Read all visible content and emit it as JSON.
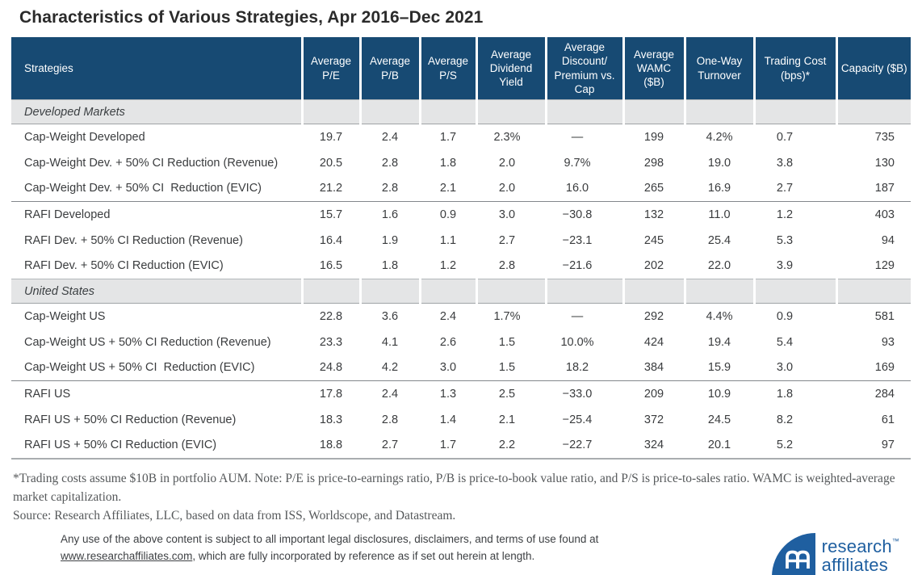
{
  "title": "Characteristics of Various Strategies, Apr 2016–Dec 2021",
  "table": {
    "columns": [
      "Strategies",
      "Average P/E",
      "Average P/B",
      "Average P/S",
      "Average Dividend Yield",
      "Average Discount/ Premium vs. Cap",
      "Average WAMC ($B)",
      "One-Way Turnover",
      "Trading Cost (bps)*",
      "Capacity ($B)"
    ],
    "sections": [
      {
        "label": "Developed Markets",
        "rows": [
          {
            "name": "Cap-Weight Developed",
            "divider": false,
            "values": [
              "19.7",
              "2.4",
              "1.7",
              "2.3%",
              "—",
              "199",
              "4.2%",
              "0.7",
              "735"
            ]
          },
          {
            "name": "Cap-Weight Dev. + 50% CI Reduction (Revenue)",
            "divider": false,
            "values": [
              "20.5",
              "2.8",
              "1.8",
              "2.0",
              "9.7%",
              "298",
              "19.0",
              "3.8",
              "130"
            ]
          },
          {
            "name": "Cap-Weight Dev. + 50% CI  Reduction (EVIC)",
            "divider": false,
            "values": [
              "21.2",
              "2.8",
              "2.1",
              "2.0",
              "16.0",
              "265",
              "16.9",
              "2.7",
              "187"
            ]
          },
          {
            "name": "RAFI Developed",
            "divider": true,
            "values": [
              "15.7",
              "1.6",
              "0.9",
              "3.0",
              "−30.8",
              "132",
              "11.0",
              "1.2",
              "403"
            ]
          },
          {
            "name": "RAFI Dev. + 50% CI Reduction (Revenue)",
            "divider": false,
            "values": [
              "16.4",
              "1.9",
              "1.1",
              "2.7",
              "−23.1",
              "245",
              "25.4",
              "5.3",
              "94"
            ]
          },
          {
            "name": "RAFI Dev. + 50% CI Reduction (EVIC)",
            "divider": false,
            "values": [
              "16.5",
              "1.8",
              "1.2",
              "2.8",
              "−21.6",
              "202",
              "22.0",
              "3.9",
              "129"
            ]
          }
        ]
      },
      {
        "label": "United States",
        "rows": [
          {
            "name": "Cap-Weight US",
            "divider": false,
            "values": [
              "22.8",
              "3.6",
              "2.4",
              "1.7%",
              "—",
              "292",
              "4.4%",
              "0.9",
              "581"
            ]
          },
          {
            "name": "Cap-Weight US + 50% CI Reduction (Revenue)",
            "divider": false,
            "values": [
              "23.3",
              "4.1",
              "2.6",
              "1.5",
              "10.0%",
              "424",
              "19.4",
              "5.4",
              "93"
            ]
          },
          {
            "name": "Cap-Weight US + 50% CI  Reduction (EVIC)",
            "divider": false,
            "values": [
              "24.8",
              "4.2",
              "3.0",
              "1.5",
              "18.2",
              "384",
              "15.9",
              "3.0",
              "169"
            ]
          },
          {
            "name": "RAFI US",
            "divider": true,
            "values": [
              "17.8",
              "2.4",
              "1.3",
              "2.5",
              "−33.0",
              "209",
              "10.9",
              "1.8",
              "284"
            ]
          },
          {
            "name": "RAFI US + 50% CI Reduction (Revenue)",
            "divider": false,
            "values": [
              "18.3",
              "2.8",
              "1.4",
              "2.1",
              "−25.4",
              "372",
              "24.5",
              "8.2",
              "61"
            ]
          },
          {
            "name": "RAFI US + 50% CI Reduction (EVIC)",
            "divider": false,
            "values": [
              "18.8",
              "2.7",
              "1.7",
              "2.2",
              "−22.7",
              "324",
              "20.1",
              "5.2",
              "97"
            ]
          }
        ]
      }
    ]
  },
  "footnotes": {
    "note": "*Trading costs assume $10B in portfolio AUM. Note: P/E is price-to-earnings ratio, P/B is price-to-book value ratio, and P/S is price-to-sales ratio. WAMC is weighted-average market capitalization.",
    "source": "Source: Research Affiliates, LLC, based on data from ISS, Worldscope, and Datastream."
  },
  "disclaimer": {
    "before_link": "Any use of the above content is subject to all important legal disclosures, disclaimers, and terms of use found at ",
    "link": "www.researchaffiliates.com",
    "after_link": ", which are fully incorporated by reference as if set out herein at length."
  },
  "logo": {
    "line1": "research",
    "tm": "™",
    "line2": "affiliates"
  },
  "colors": {
    "header_bg": "#174A73",
    "section_bg": "#E4E5E6",
    "logo_blue": "#1F5FA0"
  }
}
